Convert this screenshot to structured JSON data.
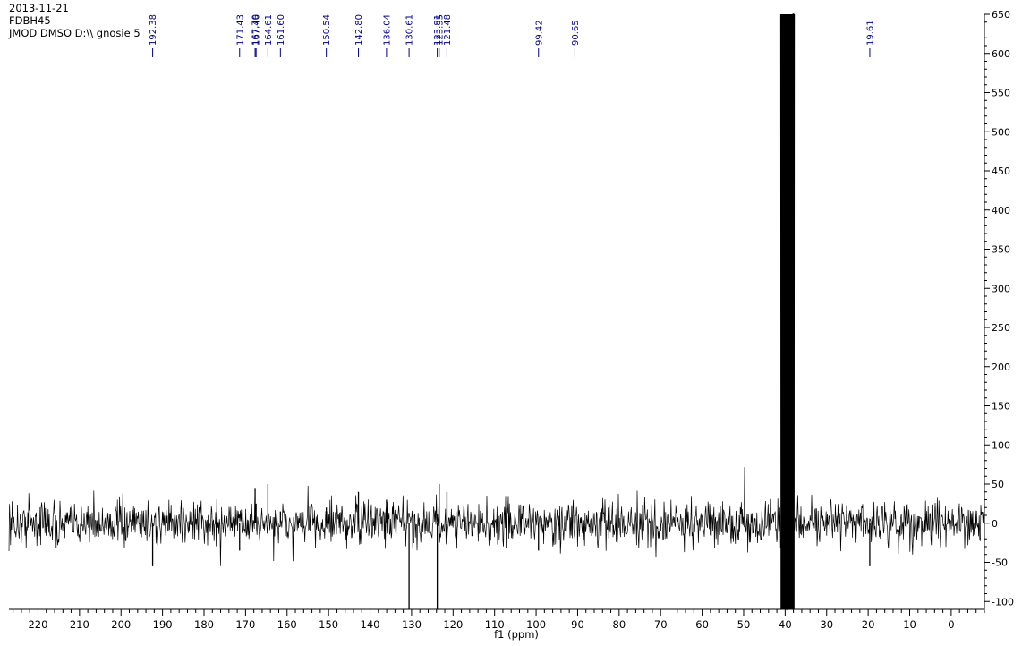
{
  "header": {
    "date": "2013-11-21",
    "sample": "FDBH45",
    "experiment": "JMOD DMSO D:\\\\ gnosie 5"
  },
  "chart_data": {
    "type": "line",
    "title": "",
    "xlabel": "f1 (ppm)",
    "ylabel": "",
    "xlim": [
      227,
      -8
    ],
    "ylim": [
      -110,
      650
    ],
    "x_ticks": [
      220,
      210,
      200,
      190,
      180,
      170,
      160,
      150,
      140,
      130,
      120,
      110,
      100,
      90,
      80,
      70,
      60,
      50,
      40,
      30,
      20,
      10,
      0
    ],
    "y_ticks": [
      650,
      600,
      550,
      500,
      450,
      400,
      350,
      300,
      250,
      200,
      150,
      100,
      50,
      0,
      -50,
      -100
    ],
    "peak_labels": [
      "192.38",
      "171.43",
      "167.70",
      "167.46",
      "164.61",
      "161.60",
      "150.54",
      "142.80",
      "136.04",
      "130.61",
      "123.81",
      "123.35",
      "121.48",
      "99.42",
      "90.65",
      "19.61"
    ],
    "peaks": [
      {
        "ppm": 192.38,
        "intensity": -55
      },
      {
        "ppm": 171.43,
        "intensity": -35
      },
      {
        "ppm": 167.7,
        "intensity": 45
      },
      {
        "ppm": 167.46,
        "intensity": 25
      },
      {
        "ppm": 164.61,
        "intensity": 50
      },
      {
        "ppm": 161.6,
        "intensity": 15
      },
      {
        "ppm": 150.54,
        "intensity": 20
      },
      {
        "ppm": 142.8,
        "intensity": 40
      },
      {
        "ppm": 136.04,
        "intensity": 30
      },
      {
        "ppm": 130.61,
        "intensity": -110
      },
      {
        "ppm": 123.81,
        "intensity": -110
      },
      {
        "ppm": 123.35,
        "intensity": 50
      },
      {
        "ppm": 121.48,
        "intensity": 40
      },
      {
        "ppm": 99.42,
        "intensity": -35
      },
      {
        "ppm": 90.65,
        "intensity": 10
      },
      {
        "ppm": 39.5,
        "intensity": 650
      },
      {
        "ppm": 19.61,
        "intensity": -55
      }
    ],
    "solvent_peak": {
      "ppm": 39.5,
      "max": 650,
      "min": -110
    },
    "noise_amplitude": 25,
    "line_color": "#000000",
    "label_color": "#00008b"
  }
}
